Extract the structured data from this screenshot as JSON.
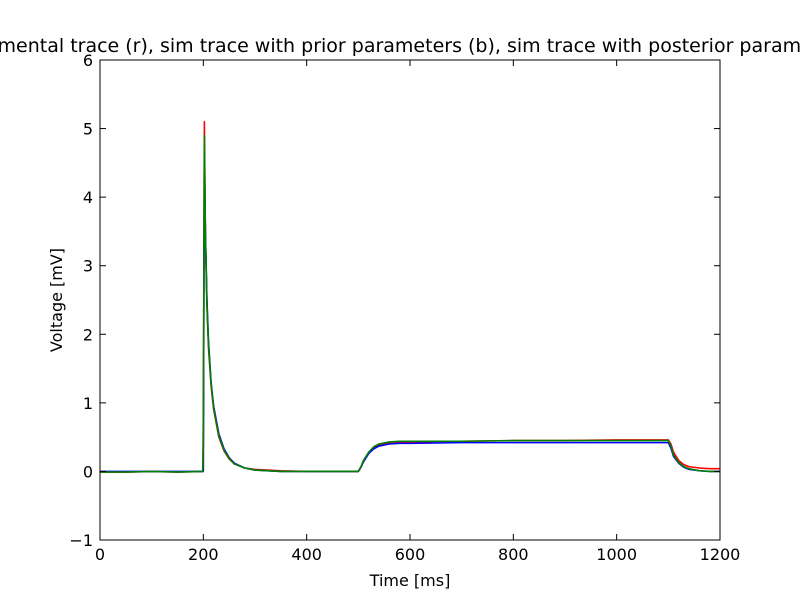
{
  "chart_data": {
    "type": "line",
    "title": "Experimental trace (r), sim trace with prior parameters (b), sim trace with posterior parameters (g)",
    "xlabel": "Time [ms]",
    "ylabel": "Voltage [mV]",
    "xlim": [
      0,
      1200
    ],
    "ylim": [
      -1,
      6
    ],
    "xticks": [
      0,
      200,
      400,
      600,
      800,
      1000,
      1200
    ],
    "yticks": [
      -1,
      0,
      1,
      2,
      3,
      4,
      5,
      6
    ],
    "xtick_labels": [
      "0",
      "200",
      "400",
      "600",
      "800",
      "1000",
      "1200"
    ],
    "ytick_labels": [
      "−1",
      "0",
      "1",
      "2",
      "3",
      "4",
      "5",
      "6"
    ],
    "grid": false,
    "legend": "none",
    "series": [
      {
        "color": "#ff0000",
        "x": [
          0,
          50,
          100,
          150,
          199,
          200,
          202,
          204,
          207,
          210,
          215,
          220,
          230,
          240,
          250,
          260,
          280,
          300,
          350,
          400,
          450,
          500,
          505,
          510,
          520,
          530,
          540,
          560,
          580,
          600,
          700,
          800,
          900,
          1000,
          1100,
          1105,
          1110,
          1120,
          1130,
          1140,
          1160,
          1180,
          1200
        ],
        "y": [
          -0.01,
          -0.01,
          0.0,
          -0.01,
          0.0,
          0.8,
          5.1,
          3.4,
          2.4,
          1.8,
          1.25,
          0.9,
          0.5,
          0.3,
          0.18,
          0.11,
          0.05,
          0.03,
          0.01,
          0.0,
          0.0,
          0.0,
          0.06,
          0.15,
          0.27,
          0.34,
          0.38,
          0.41,
          0.42,
          0.43,
          0.44,
          0.45,
          0.45,
          0.46,
          0.46,
          0.4,
          0.28,
          0.16,
          0.1,
          0.07,
          0.05,
          0.04,
          0.04
        ]
      },
      {
        "color": "#0000ff",
        "x": [
          0,
          50,
          100,
          150,
          199,
          200,
          202,
          204,
          207,
          210,
          215,
          220,
          230,
          240,
          250,
          260,
          280,
          300,
          350,
          400,
          450,
          500,
          505,
          510,
          520,
          530,
          540,
          560,
          580,
          600,
          700,
          800,
          900,
          1000,
          1100,
          1105,
          1110,
          1120,
          1130,
          1140,
          1160,
          1180,
          1200
        ],
        "y": [
          0.0,
          0.0,
          0.0,
          0.0,
          0.0,
          0.0,
          4.6,
          3.5,
          2.5,
          1.9,
          1.3,
          0.95,
          0.55,
          0.33,
          0.2,
          0.12,
          0.05,
          0.02,
          0.0,
          0.0,
          0.0,
          0.0,
          0.06,
          0.14,
          0.26,
          0.33,
          0.37,
          0.4,
          0.41,
          0.41,
          0.42,
          0.42,
          0.42,
          0.42,
          0.42,
          0.34,
          0.22,
          0.12,
          0.06,
          0.03,
          0.01,
          0.0,
          0.0
        ]
      },
      {
        "color": "#008000",
        "x": [
          0,
          50,
          100,
          150,
          199,
          200,
          202,
          204,
          207,
          210,
          215,
          220,
          230,
          240,
          250,
          260,
          280,
          300,
          350,
          400,
          450,
          500,
          505,
          510,
          520,
          530,
          540,
          560,
          580,
          600,
          700,
          800,
          900,
          1000,
          1100,
          1105,
          1110,
          1120,
          1130,
          1140,
          1160,
          1180,
          1200
        ],
        "y": [
          -0.01,
          -0.01,
          0.0,
          -0.01,
          0.0,
          0.4,
          4.9,
          3.5,
          2.45,
          1.85,
          1.28,
          0.92,
          0.52,
          0.31,
          0.19,
          0.11,
          0.05,
          0.02,
          0.0,
          0.0,
          0.0,
          0.0,
          0.07,
          0.16,
          0.28,
          0.36,
          0.4,
          0.43,
          0.44,
          0.44,
          0.44,
          0.45,
          0.45,
          0.45,
          0.45,
          0.37,
          0.24,
          0.13,
          0.07,
          0.04,
          0.01,
          0.0,
          0.0
        ]
      }
    ]
  }
}
